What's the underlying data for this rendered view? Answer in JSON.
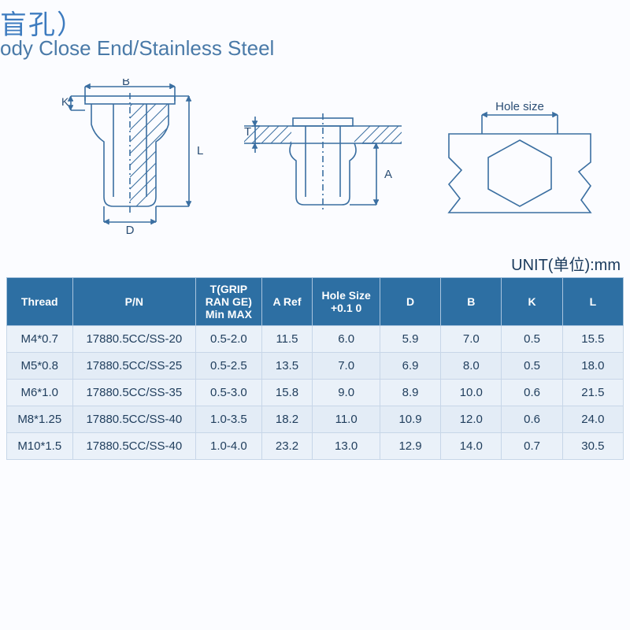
{
  "title_cn": "盲孔）",
  "title_en": "ody Close End/Stainless Steel",
  "unit_label": "UNIT(单位):mm",
  "diagrams": {
    "stroke": "#3b6fa1",
    "hatch": "#3b6fa1",
    "labels": {
      "B": "B",
      "K": "K",
      "L": "L",
      "D": "D",
      "T": "T",
      "A": "A",
      "hole": "Hole size"
    }
  },
  "table": {
    "header_bg": "#2d6fa3",
    "header_fg": "#ffffff",
    "row_bg": "#eaf1f9",
    "row_fg": "#1f3d5c",
    "columns": [
      {
        "key": "thread",
        "label": "Thread"
      },
      {
        "key": "pn",
        "label": "P/N"
      },
      {
        "key": "t",
        "label": "T(GRIP RAN GE) Min MAX"
      },
      {
        "key": "a",
        "label": "A Ref"
      },
      {
        "key": "hole",
        "label": "Hole Size +0.1 0"
      },
      {
        "key": "d",
        "label": "D"
      },
      {
        "key": "b",
        "label": "B"
      },
      {
        "key": "k",
        "label": "K"
      },
      {
        "key": "l",
        "label": "L"
      }
    ],
    "rows": [
      {
        "thread": "M4*0.7",
        "pn": "17880.5CC/SS-20",
        "t": "0.5-2.0",
        "a": "11.5",
        "hole": "6.0",
        "d": "5.9",
        "b": "7.0",
        "k": "0.5",
        "l": "15.5"
      },
      {
        "thread": "M5*0.8",
        "pn": "17880.5CC/SS-25",
        "t": "0.5-2.5",
        "a": "13.5",
        "hole": "7.0",
        "d": "6.9",
        "b": "8.0",
        "k": "0.5",
        "l": "18.0"
      },
      {
        "thread": "M6*1.0",
        "pn": "17880.5CC/SS-35",
        "t": "0.5-3.0",
        "a": "15.8",
        "hole": "9.0",
        "d": "8.9",
        "b": "10.0",
        "k": "0.6",
        "l": "21.5"
      },
      {
        "thread": "M8*1.25",
        "pn": "17880.5CC/SS-40",
        "t": "1.0-3.5",
        "a": "18.2",
        "hole": "11.0",
        "d": "10.9",
        "b": "12.0",
        "k": "0.6",
        "l": "24.0"
      },
      {
        "thread": "M10*1.5",
        "pn": "17880.5CC/SS-40",
        "t": "1.0-4.0",
        "a": "23.2",
        "hole": "13.0",
        "d": "12.9",
        "b": "14.0",
        "k": "0.7",
        "l": "30.5"
      }
    ]
  }
}
